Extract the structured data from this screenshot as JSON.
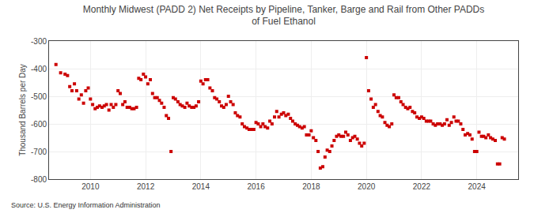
{
  "chart_data": {
    "type": "scatter",
    "title": "Monthly Midwest (PADD 2) Net Receipts by Pipeline, Tanker, Barge and Rail from Other PADDs\nof Fuel Ethanol",
    "ylabel": "Thousand Barrels per Day",
    "source": "Source: U.S. Energy Information Administration",
    "color": "#cc0000",
    "marker": "square",
    "grid": true,
    "xlim": [
      2008.5,
      2025.5
    ],
    "xticks": [
      2010,
      2012,
      2014,
      2016,
      2018,
      2020,
      2022,
      2024
    ],
    "ylim": [
      -800,
      -300
    ],
    "yticks": [
      -800,
      -700,
      -600,
      -500,
      -400,
      -300
    ],
    "x": [
      2008.75,
      2008.92,
      2009.08,
      2009.17,
      2009.25,
      2009.33,
      2009.42,
      2009.5,
      2009.58,
      2009.67,
      2009.75,
      2009.83,
      2009.92,
      2010.0,
      2010.08,
      2010.17,
      2010.25,
      2010.33,
      2010.42,
      2010.5,
      2010.58,
      2010.67,
      2010.75,
      2010.83,
      2010.92,
      2011.0,
      2011.08,
      2011.17,
      2011.25,
      2011.33,
      2011.42,
      2011.5,
      2011.58,
      2011.67,
      2011.75,
      2011.83,
      2011.92,
      2012.0,
      2012.08,
      2012.17,
      2012.25,
      2012.33,
      2012.42,
      2012.5,
      2012.58,
      2012.67,
      2012.75,
      2012.83,
      2012.92,
      2013.0,
      2013.08,
      2013.17,
      2013.25,
      2013.33,
      2013.42,
      2013.5,
      2013.58,
      2013.67,
      2013.75,
      2013.83,
      2013.92,
      2014.0,
      2014.08,
      2014.17,
      2014.25,
      2014.33,
      2014.42,
      2014.5,
      2014.58,
      2014.67,
      2014.75,
      2014.83,
      2014.92,
      2015.0,
      2015.08,
      2015.17,
      2015.25,
      2015.33,
      2015.42,
      2015.5,
      2015.58,
      2015.67,
      2015.75,
      2015.83,
      2015.92,
      2016.0,
      2016.08,
      2016.17,
      2016.25,
      2016.33,
      2016.42,
      2016.5,
      2016.58,
      2016.67,
      2016.75,
      2016.83,
      2016.92,
      2017.0,
      2017.08,
      2017.17,
      2017.25,
      2017.33,
      2017.42,
      2017.5,
      2017.58,
      2017.67,
      2017.75,
      2017.83,
      2017.92,
      2018.0,
      2018.08,
      2018.17,
      2018.25,
      2018.33,
      2018.42,
      2018.5,
      2018.58,
      2018.67,
      2018.75,
      2018.83,
      2018.92,
      2019.0,
      2019.08,
      2019.17,
      2019.25,
      2019.33,
      2019.42,
      2019.5,
      2019.58,
      2019.67,
      2019.75,
      2019.83,
      2019.92,
      2020.0,
      2020.08,
      2020.17,
      2020.25,
      2020.33,
      2020.42,
      2020.5,
      2020.58,
      2020.67,
      2020.75,
      2020.83,
      2020.92,
      2021.0,
      2021.08,
      2021.17,
      2021.25,
      2021.33,
      2021.42,
      2021.5,
      2021.58,
      2021.67,
      2021.75,
      2021.83,
      2021.92,
      2022.0,
      2022.08,
      2022.17,
      2022.25,
      2022.33,
      2022.42,
      2022.5,
      2022.58,
      2022.67,
      2022.75,
      2022.83,
      2022.92,
      2023.0,
      2023.08,
      2023.17,
      2023.25,
      2023.33,
      2023.42,
      2023.5,
      2023.58,
      2023.67,
      2023.75,
      2023.83,
      2023.92,
      2024.0,
      2024.08,
      2024.17,
      2024.25,
      2024.33,
      2024.42,
      2024.5,
      2024.58,
      2024.67,
      2024.75,
      2024.83,
      2024.92,
      2025.0
    ],
    "values": [
      -385,
      -415,
      -420,
      -425,
      -465,
      -480,
      -455,
      -480,
      -510,
      -495,
      -525,
      -480,
      -470,
      -510,
      -530,
      -545,
      -540,
      -535,
      -540,
      -535,
      -530,
      -550,
      -530,
      -540,
      -530,
      -480,
      -490,
      -530,
      -520,
      -540,
      -540,
      -545,
      -545,
      -540,
      -435,
      -440,
      -420,
      -430,
      -455,
      -440,
      -490,
      -505,
      -505,
      -515,
      -525,
      -540,
      -570,
      -580,
      -700,
      -505,
      -510,
      -520,
      -530,
      -535,
      -540,
      -525,
      -535,
      -540,
      -540,
      -535,
      -520,
      -445,
      -455,
      -440,
      -440,
      -470,
      -480,
      -505,
      -510,
      -520,
      -535,
      -540,
      -530,
      -500,
      -520,
      -530,
      -560,
      -570,
      -575,
      -600,
      -610,
      -615,
      -620,
      -620,
      -620,
      -595,
      -600,
      -610,
      -600,
      -610,
      -615,
      -590,
      -600,
      -575,
      -555,
      -575,
      -565,
      -560,
      -570,
      -565,
      -580,
      -590,
      -600,
      -605,
      -610,
      -615,
      -610,
      -640,
      -640,
      -625,
      -650,
      -660,
      -700,
      -760,
      -755,
      -720,
      -695,
      -700,
      -680,
      -660,
      -645,
      -640,
      -645,
      -645,
      -630,
      -640,
      -660,
      -650,
      -645,
      -655,
      -670,
      -680,
      -670,
      -360,
      -480,
      -510,
      -540,
      -530,
      -555,
      -570,
      -575,
      -595,
      -605,
      -610,
      -600,
      -495,
      -505,
      -505,
      -520,
      -530,
      -540,
      -545,
      -540,
      -555,
      -560,
      -575,
      -580,
      -575,
      -580,
      -590,
      -590,
      -590,
      -600,
      -605,
      -600,
      -600,
      -605,
      -600,
      -585,
      -605,
      -595,
      -575,
      -590,
      -590,
      -600,
      -620,
      -640,
      -635,
      -640,
      -655,
      -700,
      -700,
      -630,
      -645,
      -645,
      -650,
      -640,
      -650,
      -655,
      -660,
      -745,
      -745,
      -650,
      -655
    ]
  }
}
